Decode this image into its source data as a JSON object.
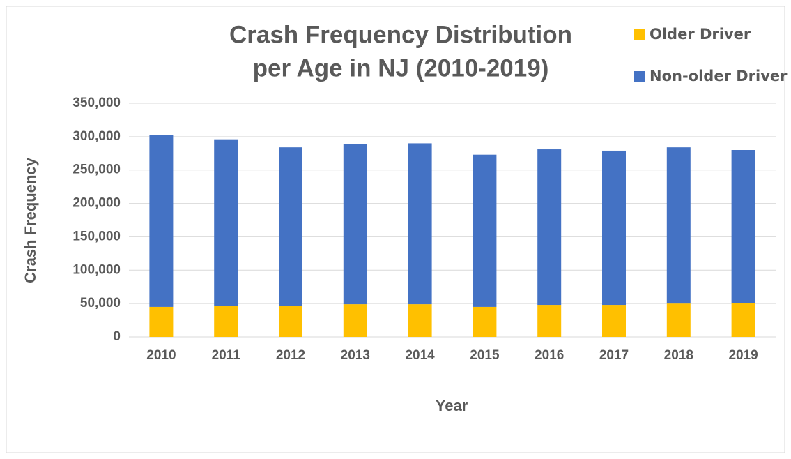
{
  "chart_data": {
    "type": "stacked_bar",
    "title": "Crash Frequency Distribution per Age in NJ (2010-2019)",
    "title_lines": [
      "Crash Frequency Distribution",
      "per Age in NJ (2010-2019)"
    ],
    "xlabel": "Year",
    "ylabel": "Crash Frequency",
    "categories": [
      "2010",
      "2011",
      "2012",
      "2013",
      "2014",
      "2015",
      "2016",
      "2017",
      "2018",
      "2019"
    ],
    "series": [
      {
        "name": "Older Driver",
        "color": "#ffc000",
        "values": [
          45000,
          46000,
          47000,
          49000,
          49000,
          45000,
          48000,
          48000,
          50000,
          51000
        ]
      },
      {
        "name": "Non-older Driver",
        "color": "#4472c4",
        "values": [
          257000,
          250000,
          237000,
          240000,
          241000,
          228000,
          233000,
          231000,
          234000,
          229000
        ]
      }
    ],
    "ylim": [
      0,
      350000
    ],
    "yticks": [
      0,
      {
        "value": 50000,
        "label": "50,000"
      },
      {
        "value": 100000,
        "label": "100,000"
      },
      {
        "value": 150000,
        "label": "150,000"
      },
      {
        "value": 200000,
        "label": "200,000"
      },
      {
        "value": 250000,
        "label": "250,000"
      },
      {
        "value": 300000,
        "label": "300,000"
      },
      {
        "value": 350000,
        "label": "350,000"
      }
    ],
    "grid": true,
    "legend": "top-right"
  }
}
